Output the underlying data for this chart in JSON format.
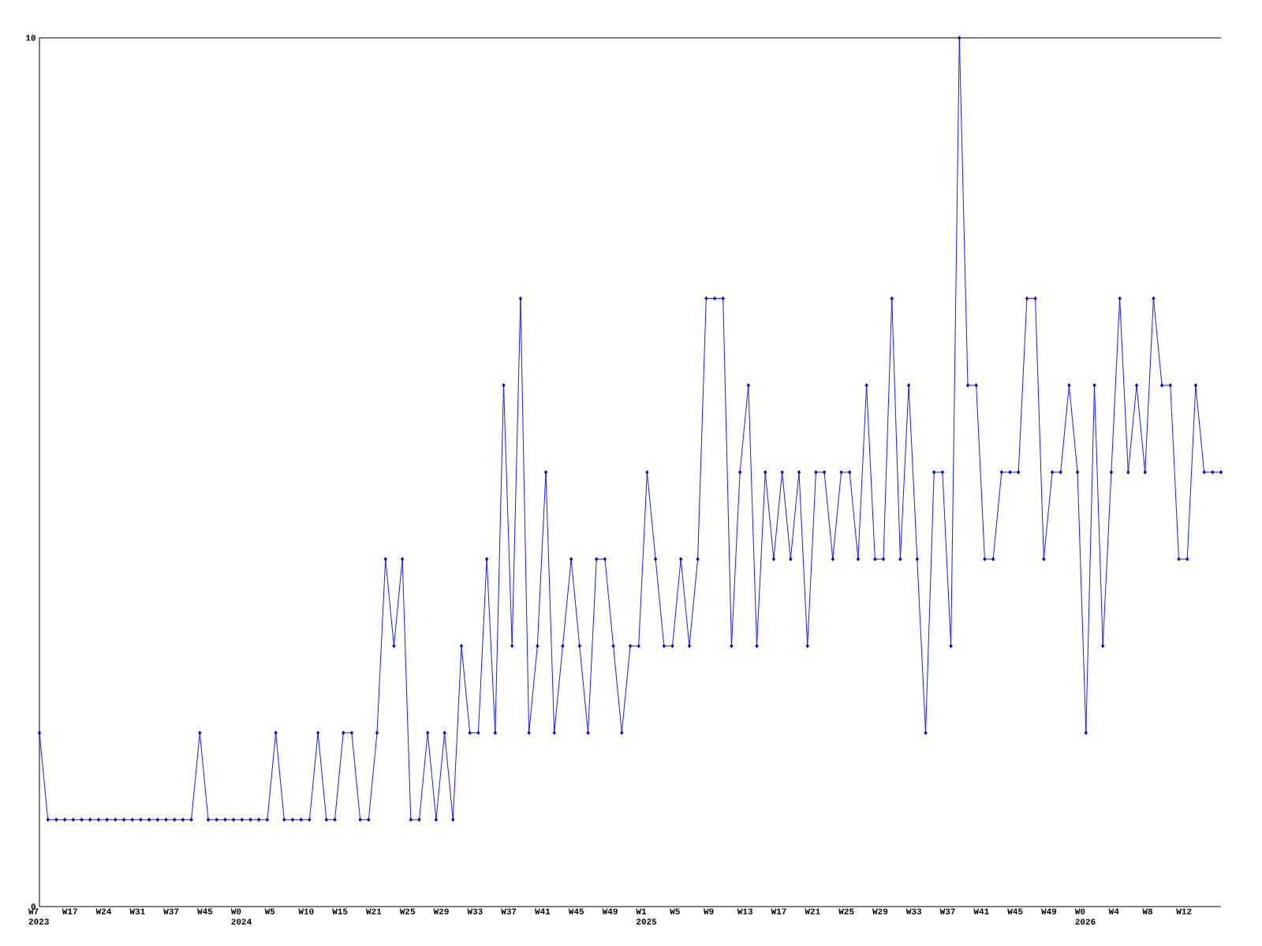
{
  "chart_data": {
    "type": "line",
    "categories": [
      "W7 2023",
      null,
      null,
      null,
      "W17",
      null,
      null,
      null,
      "W24",
      null,
      null,
      null,
      "W31",
      null,
      null,
      null,
      "W37",
      null,
      null,
      null,
      "W45",
      null,
      null,
      null,
      "W0 2024",
      null,
      null,
      null,
      "W5",
      null,
      null,
      null,
      "W10",
      null,
      null,
      null,
      "W15",
      null,
      null,
      null,
      "W21",
      null,
      null,
      null,
      "W25",
      null,
      null,
      null,
      "W29",
      null,
      null,
      null,
      "W33",
      null,
      null,
      null,
      "W37",
      null,
      null,
      null,
      "W41",
      null,
      null,
      null,
      "W45",
      null,
      null,
      null,
      "W49",
      null,
      null,
      null,
      "W1 2025",
      null,
      null,
      null,
      "W5",
      null,
      null,
      null,
      "W9",
      null,
      null,
      null,
      "W13",
      null,
      null,
      null,
      "W17",
      null,
      null,
      null,
      "W21",
      null,
      null,
      null,
      "W25",
      null,
      null,
      null,
      "W29",
      null,
      null,
      null,
      "W33",
      null,
      null,
      null,
      "W37",
      null,
      null,
      null,
      "W41",
      null,
      null,
      null,
      "W45",
      null,
      null,
      null,
      "W49",
      null,
      null,
      null,
      "W0 2026",
      null,
      null,
      null,
      "W4",
      null,
      null,
      null,
      "W8",
      null,
      null,
      null,
      "W12",
      null,
      null,
      null,
      null
    ],
    "values": [
      2,
      1,
      1,
      1,
      1,
      1,
      1,
      1,
      1,
      1,
      1,
      1,
      1,
      1,
      1,
      1,
      1,
      1,
      1,
      2,
      1,
      1,
      1,
      1,
      1,
      1,
      1,
      1,
      2,
      1,
      1,
      1,
      1,
      2,
      1,
      1,
      2,
      2,
      1,
      1,
      2,
      4,
      3,
      4,
      1,
      1,
      2,
      1,
      2,
      1,
      3,
      2,
      2,
      4,
      2,
      6,
      3,
      7,
      2,
      3,
      5,
      2,
      3,
      4,
      3,
      2,
      4,
      4,
      3,
      2,
      3,
      3,
      5,
      4,
      3,
      3,
      4,
      3,
      4,
      7,
      7,
      7,
      3,
      5,
      6,
      3,
      5,
      4,
      5,
      4,
      5,
      3,
      5,
      5,
      4,
      5,
      5,
      4,
      6,
      4,
      4,
      7,
      4,
      6,
      4,
      2,
      5,
      5,
      3,
      10,
      6,
      6,
      4,
      4,
      5,
      5,
      5,
      7,
      7,
      4,
      5,
      5,
      6,
      5,
      2,
      6,
      3,
      5,
      7,
      5,
      6,
      5,
      7,
      6,
      6,
      4,
      4,
      6,
      5,
      5,
      5
    ],
    "color": "#0000ff",
    "marker": "diamond",
    "line_style": "solid",
    "ylim": [
      0,
      10
    ],
    "yticks": [
      0,
      10
    ]
  }
}
